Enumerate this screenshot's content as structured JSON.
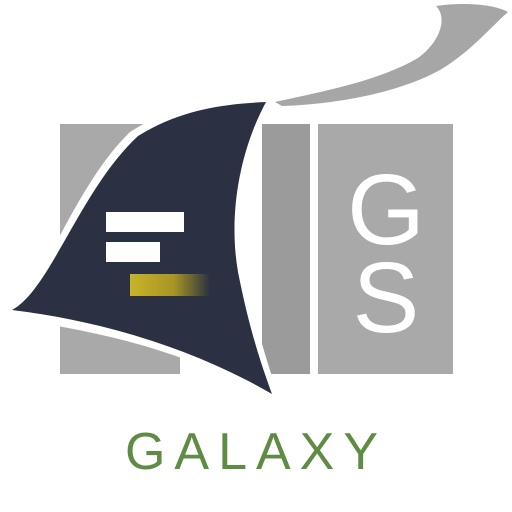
{
  "logo": {
    "monogram": {
      "first_letter": "G",
      "second_letter": "S"
    },
    "wordmark": "GALAXY",
    "colors": {
      "navy": "#2b3142",
      "gray_light": "#a9a9aa",
      "gray_mid": "#9b9b9c",
      "gray_swoosh": "#a6a6a7",
      "gold": "#c8b428",
      "green": "#5e8c44",
      "white": "#ffffff"
    }
  }
}
